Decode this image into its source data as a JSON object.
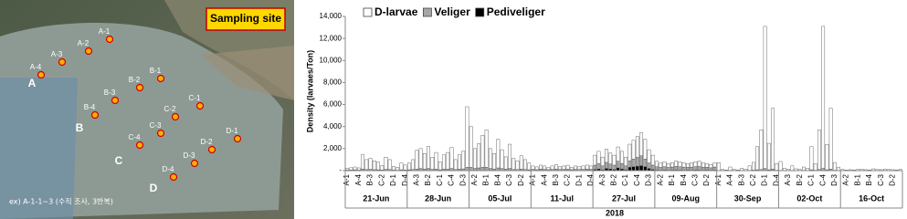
{
  "map": {
    "title": "Sampling site",
    "sites": [
      "A-1",
      "A-2",
      "A-3",
      "A-4",
      "B-1",
      "B-2",
      "B-3",
      "B-4",
      "C-1",
      "C-2",
      "C-3",
      "C-4",
      "D-1",
      "D-2",
      "D-3",
      "D-4"
    ],
    "zones": [
      "A",
      "B",
      "C",
      "D"
    ],
    "note": "ex) A-1-1~3 (수직 조사, 3반복)"
  },
  "chart_data": {
    "type": "stacked_bar",
    "y_label": "Density (larvaes/Ton)",
    "x_label": "2018",
    "groups": [
      "21-Jun",
      "28-Jun",
      "05-Jul",
      "11-Jul",
      "27-Jul",
      "09-Aug",
      "30-Sep",
      "02-Oct",
      "16-Oct"
    ],
    "categories": [
      "A-1",
      null,
      null,
      "A-4",
      null,
      null,
      "B-3",
      null,
      null,
      "C-2",
      null,
      null,
      "D-1",
      null,
      null,
      "D-4",
      null,
      null,
      "A-3",
      null,
      null,
      "B-2",
      null,
      null,
      "C-1",
      null,
      null,
      "C-4",
      null,
      null,
      "D-3",
      null,
      null,
      "A-2",
      null,
      null,
      "B-1",
      null,
      null,
      "B-4",
      null,
      null,
      "C-3",
      null,
      null,
      "D-2",
      null,
      null,
      "A-1",
      null,
      null,
      "A-4",
      null,
      null,
      "B-3",
      null,
      null,
      "C-2",
      null,
      null,
      "D-1",
      null,
      null,
      "D-4",
      null,
      null,
      "A-3",
      null,
      null,
      "B-2",
      null,
      null,
      "C-1",
      null,
      null,
      "C-4",
      null,
      null,
      "D-3",
      null,
      null,
      "A-2",
      null,
      null,
      "B-1",
      null,
      null,
      "B-4",
      null,
      null,
      "C-3",
      null,
      null,
      "D-2",
      null,
      null,
      "A-1",
      null,
      null,
      "A-4",
      null,
      null,
      "B-3",
      null,
      null,
      "C-2",
      null,
      null,
      "D-1",
      null,
      null,
      "D-4",
      null,
      null,
      "A-3",
      null,
      null,
      "B-2",
      null,
      null,
      "C-1",
      null,
      null,
      "C-4",
      null,
      null,
      "D-3",
      null,
      null,
      "A-2",
      null,
      null,
      "B-1",
      null,
      null,
      "B-4",
      null,
      null,
      "C-3",
      null,
      null,
      "D-2",
      null,
      null
    ],
    "series": [
      {
        "name": "D-larvae",
        "color": "#ffffff",
        "values": [
          150,
          200,
          250,
          200,
          1300,
          900,
          1000,
          800,
          700,
          400,
          1100,
          900,
          300,
          250,
          600,
          450,
          600,
          900,
          1700,
          1800,
          1400,
          2000,
          1100,
          1500,
          700,
          1300,
          1500,
          1900,
          900,
          1300,
          1600,
          5500,
          3700,
          1800,
          2200,
          2900,
          3400,
          1800,
          1400,
          2600,
          1700,
          1100,
          2200,
          1000,
          800,
          1200,
          900,
          600,
          300,
          250,
          350,
          300,
          200,
          300,
          400,
          250,
          300,
          350,
          200,
          300,
          250,
          300,
          350,
          300,
          900,
          1100,
          800,
          1200,
          1000,
          900,
          1300,
          1100,
          800,
          1500,
          1700,
          1900,
          2100,
          1800,
          1200,
          900,
          500,
          400,
          450,
          350,
          400,
          500,
          450,
          400,
          350,
          400,
          450,
          500,
          400,
          350,
          300,
          400,
          700,
          100,
          50,
          300,
          100,
          50,
          200,
          100,
          400,
          700,
          2100,
          3600,
          12900,
          2400,
          5500,
          600,
          800,
          200,
          100,
          400,
          150,
          100,
          300,
          200,
          2100,
          600,
          3600,
          12900,
          2300,
          5500,
          700,
          300,
          100,
          50,
          80,
          60,
          100,
          120,
          80,
          60,
          150,
          100,
          80,
          120,
          100,
          80,
          60,
          100
        ]
      },
      {
        "name": "Veliger",
        "color": "#a6a6a6",
        "values": [
          50,
          60,
          80,
          50,
          150,
          100,
          120,
          90,
          80,
          60,
          120,
          100,
          50,
          40,
          80,
          60,
          80,
          100,
          150,
          200,
          150,
          200,
          120,
          150,
          80,
          130,
          150,
          200,
          100,
          130,
          160,
          300,
          300,
          200,
          250,
          300,
          300,
          200,
          150,
          250,
          200,
          150,
          200,
          100,
          100,
          150,
          100,
          80,
          100,
          80,
          120,
          100,
          80,
          100,
          120,
          90,
          100,
          110,
          80,
          100,
          90,
          100,
          120,
          100,
          400,
          500,
          350,
          550,
          450,
          400,
          600,
          500,
          350,
          600,
          700,
          800,
          900,
          700,
          500,
          400,
          300,
          250,
          300,
          250,
          280,
          320,
          300,
          280,
          250,
          280,
          300,
          320,
          280,
          250,
          220,
          280,
          20,
          10,
          10,
          30,
          10,
          10,
          20,
          10,
          30,
          50,
          80,
          100,
          200,
          80,
          150,
          40,
          30,
          20,
          10,
          30,
          20,
          10,
          30,
          20,
          80,
          40,
          100,
          200,
          80,
          150,
          40,
          20,
          10,
          5,
          8,
          6,
          10,
          12,
          8,
          6,
          15,
          10,
          8,
          12,
          10,
          8,
          6,
          10
        ]
      },
      {
        "name": "Pediveliger",
        "color": "#000000",
        "values": [
          0,
          0,
          0,
          0,
          0,
          0,
          0,
          0,
          0,
          0,
          0,
          0,
          0,
          0,
          0,
          0,
          0,
          0,
          0,
          0,
          0,
          0,
          0,
          0,
          0,
          0,
          0,
          0,
          0,
          0,
          0,
          0,
          0,
          0,
          0,
          0,
          0,
          0,
          0,
          0,
          0,
          0,
          0,
          0,
          0,
          0,
          0,
          0,
          20,
          10,
          30,
          20,
          10,
          20,
          30,
          10,
          20,
          30,
          10,
          20,
          10,
          20,
          30,
          20,
          100,
          150,
          80,
          200,
          150,
          100,
          250,
          150,
          80,
          300,
          350,
          400,
          450,
          350,
          200,
          100,
          50,
          40,
          60,
          40,
          50,
          60,
          50,
          40,
          50,
          40,
          60,
          50,
          40,
          50,
          40,
          50,
          0,
          0,
          0,
          0,
          0,
          0,
          0,
          0,
          0,
          0,
          0,
          0,
          0,
          0,
          0,
          0,
          0,
          0,
          0,
          0,
          0,
          0,
          0,
          0,
          0,
          0,
          0,
          0,
          0,
          0,
          0,
          0,
          0,
          0,
          0,
          0,
          0,
          0,
          0,
          0,
          0,
          0,
          0,
          0,
          0,
          0,
          0,
          0
        ]
      }
    ],
    "ylim": [
      0,
      14000
    ],
    "yticks": [
      {
        "value": 0,
        "label": "-"
      },
      {
        "value": 2000,
        "label": "2,000"
      },
      {
        "value": 4000,
        "label": "4,000"
      },
      {
        "value": 6000,
        "label": "6,000"
      },
      {
        "value": 8000,
        "label": "8,000"
      },
      {
        "value": 10000,
        "label": "10,000"
      },
      {
        "value": 12000,
        "label": "12,000"
      },
      {
        "value": 14000,
        "label": "14,000"
      }
    ],
    "grid": false,
    "legend": "top-left"
  }
}
